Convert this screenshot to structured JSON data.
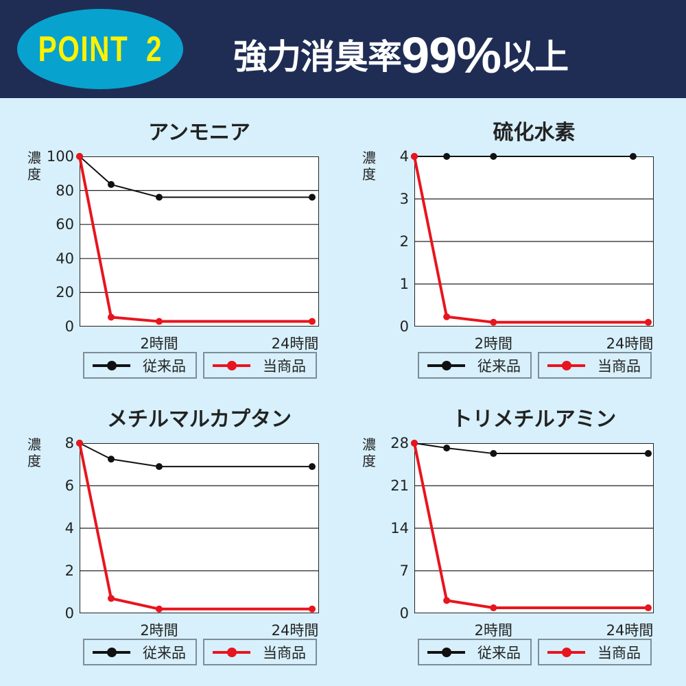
{
  "header": {
    "badge": "POINT  2",
    "headline_prefix": "強力消臭率",
    "headline_big": "99%",
    "headline_suffix": "以上"
  },
  "colors": {
    "header_bg": "#1f2d55",
    "badge": "#08a2cf",
    "badge_text": "#fff200",
    "conventional": "#111111",
    "ours": "#e8141e",
    "background": "#d7f0fb"
  },
  "chart_data": [
    {
      "type": "line",
      "title": "アンモニア",
      "ylabel": "濃度",
      "ylim": [
        0,
        100
      ],
      "yticks": [
        "0",
        "20",
        "40",
        "60",
        "80",
        "100"
      ],
      "x": [
        "",
        "",
        "2時間",
        "24時間"
      ],
      "series": [
        {
          "name": "従来品",
          "values": [
            100,
            83.5,
            76,
            76
          ]
        },
        {
          "name": "当商品",
          "values": [
            100,
            5.5,
            3,
            3
          ]
        }
      ],
      "grid": true,
      "legend": "bottom"
    },
    {
      "type": "line",
      "title": "硫化水素",
      "ylabel": "濃度",
      "ylim": [
        0,
        4
      ],
      "yticks": [
        "0",
        "1",
        "2",
        "3",
        "4"
      ],
      "x": [
        "",
        "",
        "2時間",
        "24時間"
      ],
      "series": [
        {
          "name": "従来品",
          "values": [
            4,
            4,
            4,
            4
          ]
        },
        {
          "name": "当商品",
          "values": [
            4,
            0.23,
            0.1,
            0.1
          ]
        }
      ],
      "grid": true,
      "legend": "bottom"
    },
    {
      "type": "line",
      "title": "メチルマルカプタン",
      "ylabel": "濃度",
      "ylim": [
        0,
        8
      ],
      "yticks": [
        "0",
        "2",
        "4",
        "6",
        "8"
      ],
      "x": [
        "",
        "",
        "2時間",
        "24時間"
      ],
      "series": [
        {
          "name": "従来品",
          "values": [
            8,
            7.25,
            6.9,
            6.9
          ]
        },
        {
          "name": "当商品",
          "values": [
            8,
            0.7,
            0.2,
            0.2
          ]
        }
      ],
      "grid": true,
      "legend": "bottom"
    },
    {
      "type": "line",
      "title": "トリメチルアミン",
      "ylabel": "濃度",
      "ylim": [
        0,
        28
      ],
      "yticks": [
        "0",
        "7",
        "14",
        "21",
        "28"
      ],
      "x": [
        "",
        "",
        "2時間",
        "24時間"
      ],
      "series": [
        {
          "name": "従来品",
          "values": [
            28,
            27.2,
            26.3,
            26.3
          ]
        },
        {
          "name": "当商品",
          "values": [
            28,
            2.1,
            0.9,
            0.9
          ]
        }
      ],
      "grid": true,
      "legend": "bottom"
    }
  ]
}
